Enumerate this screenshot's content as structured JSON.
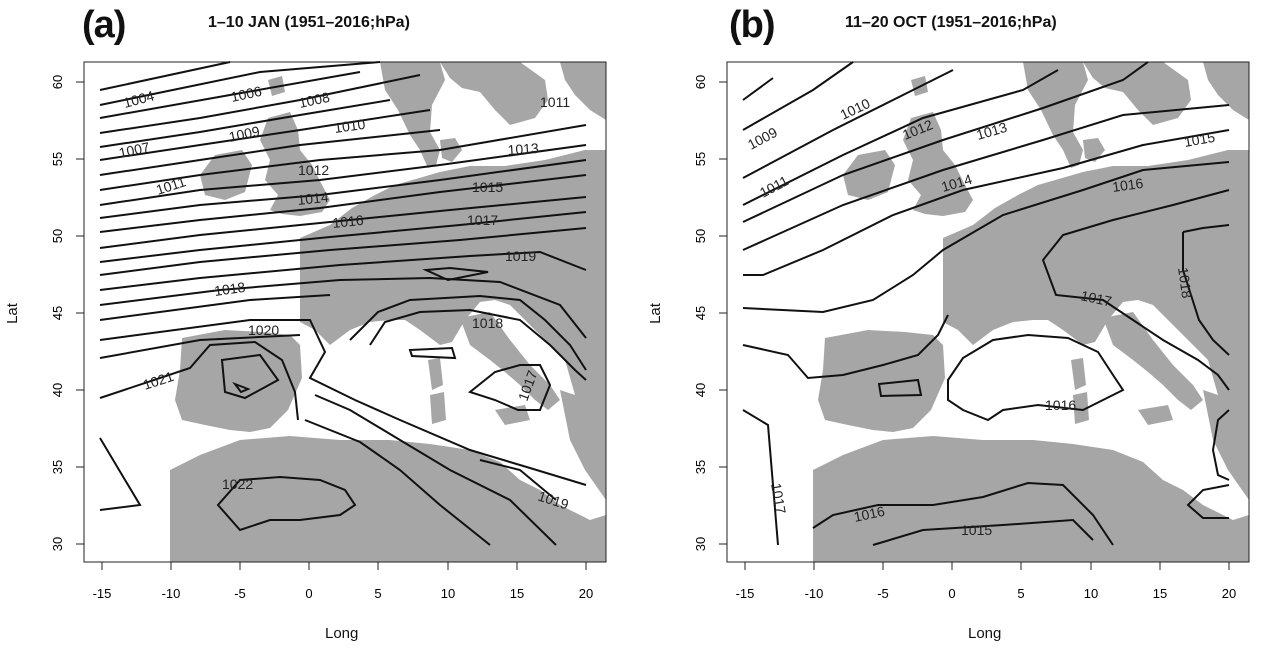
{
  "panels": [
    {
      "letter": "(a)",
      "title": "1–10  JAN (1951–2016;hPa)",
      "xlabel": "Long",
      "ylabel": "Lat",
      "contour_labels": [
        "1004",
        "1006",
        "1008",
        "1007",
        "1009",
        "1010",
        "1011",
        "1012",
        "1013",
        "1011",
        "1014",
        "1015",
        "1016",
        "1017",
        "1019",
        "1018",
        "1020",
        "1018",
        "1021",
        "1017",
        "1022",
        "1019"
      ]
    },
    {
      "letter": "(b)",
      "title": "11–20  OCT (1951–2016;hPa)",
      "xlabel": "Long",
      "ylabel": "Lat",
      "contour_labels": [
        "1009",
        "1010",
        "1012",
        "1013",
        "1011",
        "1014",
        "1015",
        "1016",
        "1018",
        "1017",
        "1016",
        "1017",
        "1016",
        "1015"
      ]
    }
  ],
  "axes": {
    "x_ticks": [
      "-15",
      "-10",
      "-5",
      "0",
      "5",
      "10",
      "15",
      "20"
    ],
    "y_ticks": [
      "30",
      "35",
      "40",
      "45",
      "50",
      "55",
      "60"
    ],
    "xlim": [
      -16,
      21
    ],
    "ylim": [
      29,
      61
    ]
  },
  "colors": {
    "land": "#a6a6a6",
    "sea": "#ffffff",
    "isobar": "#111111",
    "frame": "#222222"
  }
}
